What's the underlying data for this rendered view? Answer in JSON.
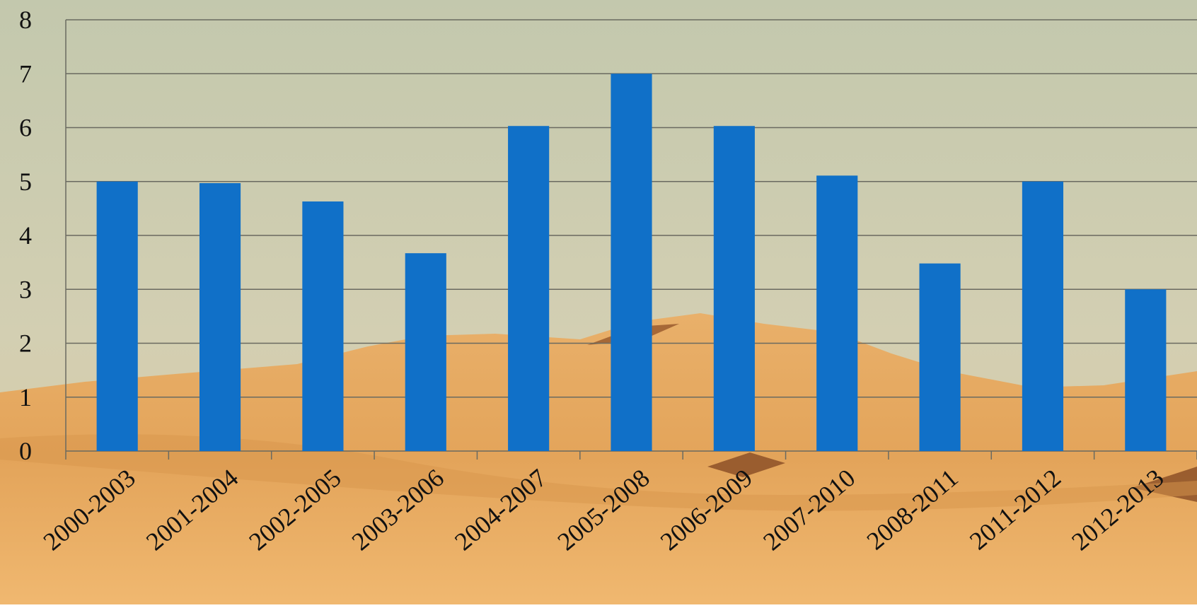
{
  "chart_data": {
    "type": "bar",
    "categories": [
      "2000-2003",
      "2001-2004",
      "2002-2005",
      "2003-2006",
      "2004-2007",
      "2005-2008",
      "2006-2009",
      "2007-2010",
      "2008-2011",
      "2011-2012",
      "2012-2013"
    ],
    "values": [
      5,
      4.97,
      4.63,
      3.67,
      6.03,
      7,
      6.03,
      5.11,
      3.48,
      5,
      3
    ],
    "color": "#1070c8",
    "ylim": [
      0,
      8
    ],
    "yticks": [
      0,
      1,
      2,
      3,
      4,
      5,
      6,
      7,
      8
    ],
    "grid": true
  }
}
